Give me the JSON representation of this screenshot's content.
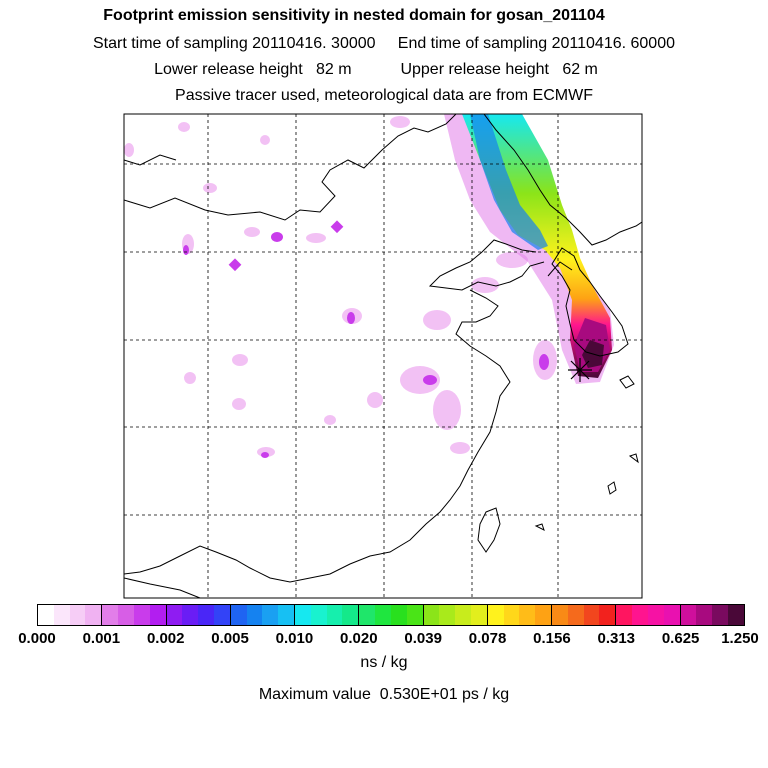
{
  "title": {
    "line1": "Footprint emission sensitivity in nested domain for gosan_201104",
    "line2": "Start time of sampling 20110416. 30000     End time of sampling 20110416. 60000",
    "line3": "Lower release height   82 m           Upper release height   62 m",
    "line4": "Passive tracer used, meteorological data are from ECMWF"
  },
  "colorbar": {
    "tick_labels": [
      "0.000",
      "0.001",
      "0.002",
      "0.005",
      "0.010",
      "0.020",
      "0.039",
      "0.078",
      "0.156",
      "0.313",
      "0.625",
      "1.250"
    ],
    "colors": [
      "#ffffff",
      "#fbe6fb",
      "#f6cdf6",
      "#f0b2f2",
      "#e27ee9",
      "#d75ee6",
      "#c93ceb",
      "#b21ef0",
      "#8f1cf2",
      "#6a1df5",
      "#4a26f7",
      "#3343f7",
      "#1f64f2",
      "#1582f0",
      "#1aa0f2",
      "#17c0f3",
      "#16e8f0",
      "#19f2cf",
      "#16efad",
      "#14e98a",
      "#1fe66a",
      "#1fe63f",
      "#29e01e",
      "#4ae417",
      "#8be419",
      "#a9ea1b",
      "#c8ec1c",
      "#e2ee1d",
      "#fff21d",
      "#ffd71a",
      "#ffbc18",
      "#fea214",
      "#f98a16",
      "#f56a1c",
      "#f2461e",
      "#f2221e",
      "#ff1560",
      "#ff148f",
      "#f612a4",
      "#e911b0",
      "#cf0f9c",
      "#a80a7f",
      "#7a0a5f",
      "#4a0838"
    ],
    "unit": "ns / kg"
  },
  "max_value": "Maximum value  0.530E+01 ps / kg"
}
